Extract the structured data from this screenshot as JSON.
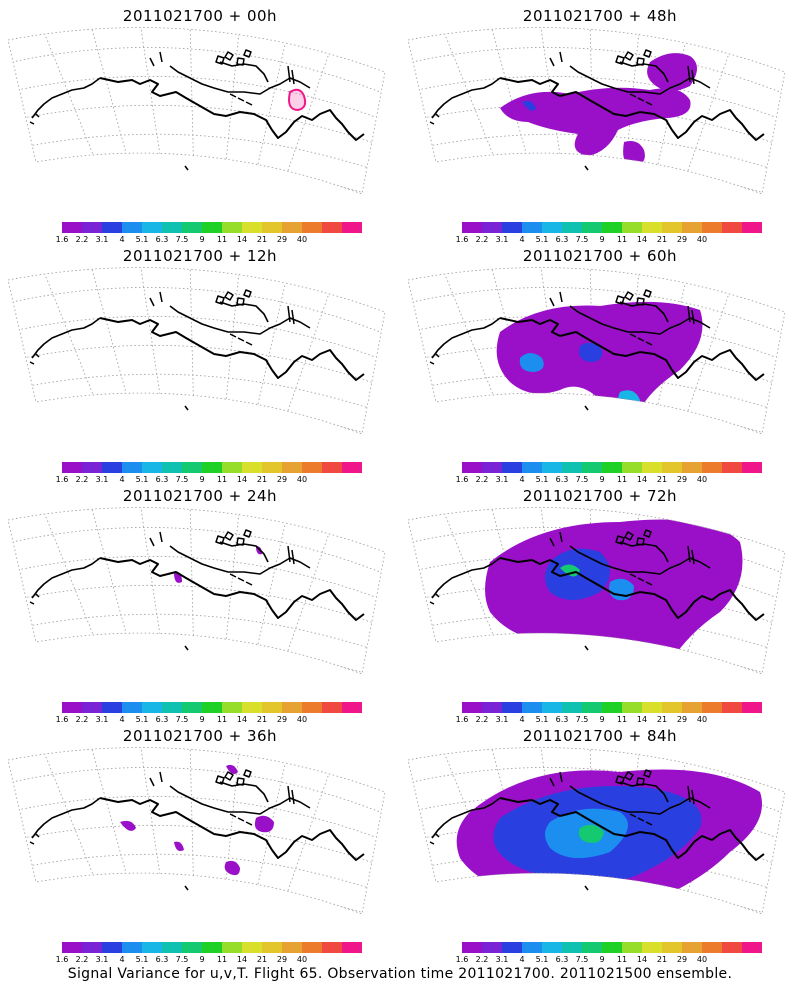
{
  "panels": [
    {
      "title": "2011021700 + 00h",
      "forecast_hour": 0
    },
    {
      "title": "2011021700 + 48h",
      "forecast_hour": 48
    },
    {
      "title": "2011021700 + 12h",
      "forecast_hour": 12
    },
    {
      "title": "2011021700 + 60h",
      "forecast_hour": 60
    },
    {
      "title": "2011021700 + 24h",
      "forecast_hour": 24
    },
    {
      "title": "2011021700 + 72h",
      "forecast_hour": 72
    },
    {
      "title": "2011021700 + 36h",
      "forecast_hour": 36
    },
    {
      "title": "2011021700 + 84h",
      "forecast_hour": 84
    }
  ],
  "colorbar": {
    "ticks": [
      "1.6",
      "2.2",
      "3.1",
      "4",
      "5.1",
      "6.3",
      "7.5",
      "9",
      "11",
      "14",
      "21",
      "29",
      "40"
    ],
    "colors": [
      "#9a10c8",
      "#7a22d6",
      "#2a3fe0",
      "#1b8ef0",
      "#18b6e6",
      "#10c0b0",
      "#15c970",
      "#1fd026",
      "#96dd2a",
      "#d8e02b",
      "#e3c62a",
      "#e6a331",
      "#ec7c2c",
      "#f04a40",
      "#f0168a"
    ]
  },
  "caption": "Signal Variance for u,v,T. Flight 65. Observation time 2011021700. 2011021500 ensemble.",
  "chart_data": {
    "type": "heatmap",
    "title": "Signal Variance for u,v,T. Flight 65. Observation time 2011021700. 2011021500 ensemble.",
    "variable": "Signal Variance",
    "variables": "u,v,T",
    "flight": 65,
    "observation_time": "2011021700",
    "ensemble": "2011021500",
    "forecast_hours": [
      0,
      12,
      24,
      36,
      48,
      60,
      72,
      84
    ],
    "contour_levels": [
      1.6,
      2.2,
      3.1,
      4,
      5.1,
      6.3,
      7.5,
      9,
      11,
      14,
      21,
      29,
      40
    ]
  }
}
